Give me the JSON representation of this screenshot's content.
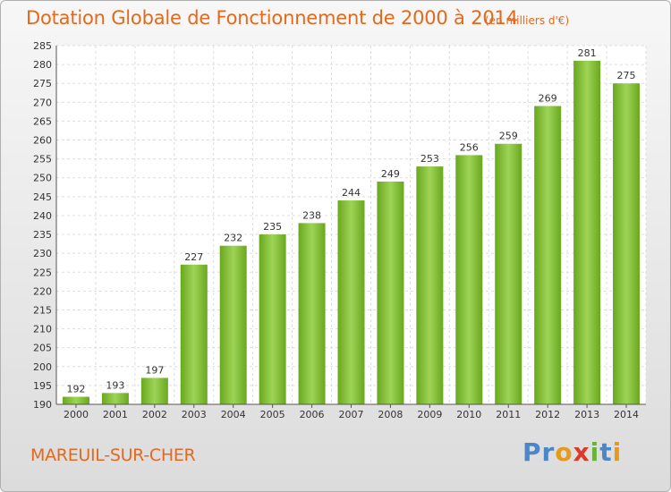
{
  "chart_data": {
    "type": "bar",
    "title": "Dotation Globale de Fonctionnement de 2000 à 2014",
    "subtitle": "(en milliers d'€)",
    "categories": [
      "2000",
      "2001",
      "2002",
      "2003",
      "2004",
      "2005",
      "2006",
      "2007",
      "2008",
      "2009",
      "2010",
      "2011",
      "2012",
      "2013",
      "2014"
    ],
    "values": [
      192,
      193,
      197,
      227,
      232,
      235,
      238,
      244,
      249,
      253,
      256,
      259,
      269,
      281,
      275
    ],
    "ylim": [
      190,
      285
    ],
    "yticks": [
      190,
      195,
      200,
      205,
      210,
      215,
      220,
      225,
      230,
      235,
      240,
      245,
      250,
      255,
      260,
      265,
      270,
      275,
      280,
      285
    ],
    "grid": true,
    "bar_color": "#7fc22e",
    "legend": null
  },
  "footer": {
    "commune": "MAREUIL-SUR-CHER"
  },
  "logo": {
    "text": "Proxiti",
    "letters": [
      {
        "ch": "P",
        "color": "#4a86c8"
      },
      {
        "ch": "r",
        "color": "#4a86c8"
      },
      {
        "ch": "o",
        "color": "#e59a1e"
      },
      {
        "ch": "x",
        "color": "#d93a2b"
      },
      {
        "ch": "i",
        "color": "#6ab23a"
      },
      {
        "ch": "t",
        "color": "#4a86c8"
      },
      {
        "ch": "i",
        "color": "#e59a1e"
      }
    ]
  },
  "colors": {
    "accent": "#e2691d",
    "bar_light": "#9ed456",
    "bar_dark": "#6aa71f"
  }
}
